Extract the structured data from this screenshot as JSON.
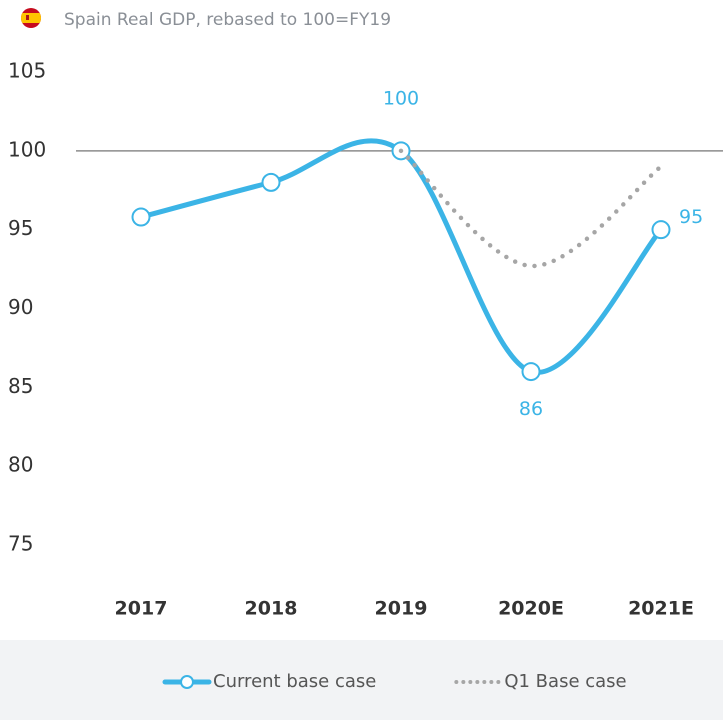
{
  "chart_data": {
    "type": "line",
    "title": "Spain Real GDP, rebased to 100=FY19",
    "categories": [
      "2017",
      "2018",
      "2019",
      "2020E",
      "2021E"
    ],
    "series": [
      {
        "name": "Current base case",
        "color": "#3bb4e6",
        "style": "solid",
        "markers": true,
        "values": [
          95.8,
          98,
          100,
          86,
          95
        ],
        "value_labels": [
          null,
          null,
          "100",
          "86",
          "95"
        ]
      },
      {
        "name": "Q1 Base case",
        "color": "#a6a6a6",
        "style": "dotted",
        "markers": false,
        "values": [
          null,
          null,
          100,
          92.7,
          99
        ]
      }
    ],
    "ylim": [
      75,
      105
    ],
    "yticks": [
      75,
      80,
      85,
      90,
      95,
      100,
      105
    ],
    "reference_line": 100,
    "grid": false,
    "legend": "bottom"
  }
}
